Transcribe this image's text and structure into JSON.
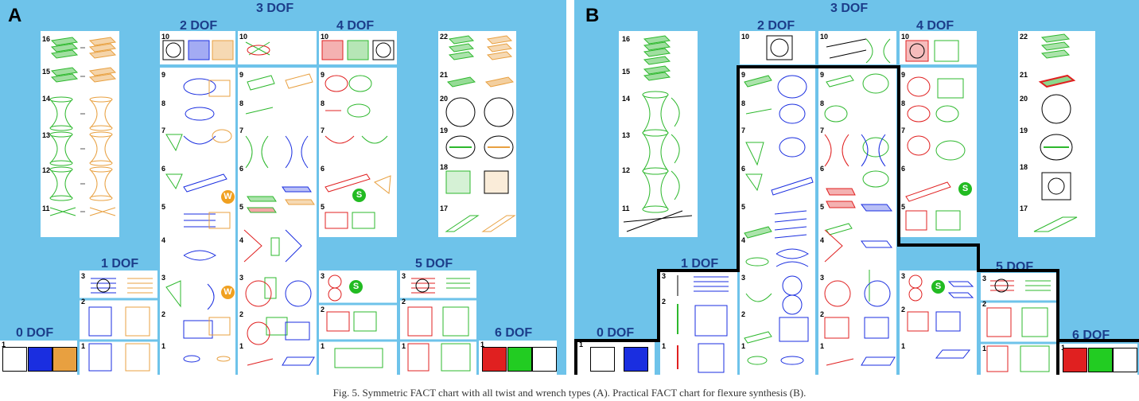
{
  "panels": [
    {
      "letter": "A",
      "dof_labels": {
        "dof0": "0 DOF",
        "dof1": "1 DOF",
        "dof2": "2 DOF",
        "dof3": "3 DOF",
        "dof4": "4 DOF",
        "dof5": "5 DOF",
        "dof6": "6 DOF"
      },
      "rows3a": [
        "16",
        "15",
        "14",
        "13",
        "12",
        "11"
      ],
      "rows3c": [
        "22",
        "21",
        "20",
        "19",
        "18",
        "17"
      ],
      "rows2": [
        "10",
        "9",
        "8",
        "7",
        "6",
        "5",
        "4",
        "3",
        "2",
        "1"
      ],
      "rows1": [
        "3",
        "2",
        "1"
      ],
      "badges": {
        "w": "W",
        "s": "S"
      },
      "dof0_row": "1",
      "dof6_row": "1"
    },
    {
      "letter": "B",
      "dof_labels": {
        "dof0": "0 DOF",
        "dof1": "1 DOF",
        "dof2": "2 DOF",
        "dof3": "3 DOF",
        "dof4": "4 DOF",
        "dof5": "5 DOF",
        "dof6": "6 DOF"
      },
      "rows3a": [
        "16",
        "15",
        "14",
        "13",
        "12",
        "11"
      ],
      "rows3c": [
        "22",
        "21",
        "20",
        "19",
        "18",
        "17"
      ],
      "rows2": [
        "10",
        "9",
        "8",
        "7",
        "6",
        "5",
        "4",
        "3",
        "2",
        "1"
      ],
      "rows1": [
        "3",
        "2",
        "1"
      ],
      "badges": {
        "s": "S"
      },
      "dof0_row": "1",
      "dof6_row": "1"
    }
  ],
  "colors": {
    "background": "#6ec3ea",
    "green": "#2db82d",
    "blue": "#1a2ee0",
    "orange": "#e8a040",
    "red": "#e02020",
    "label": "#1c3d8a",
    "badge_w": "#f0a020",
    "badge_s": "#22bb22"
  },
  "caption": "Fig. 5. Symmetric FACT chart with all twist and wrench types (A). Practical FACT chart for flexure synthesis (B)."
}
